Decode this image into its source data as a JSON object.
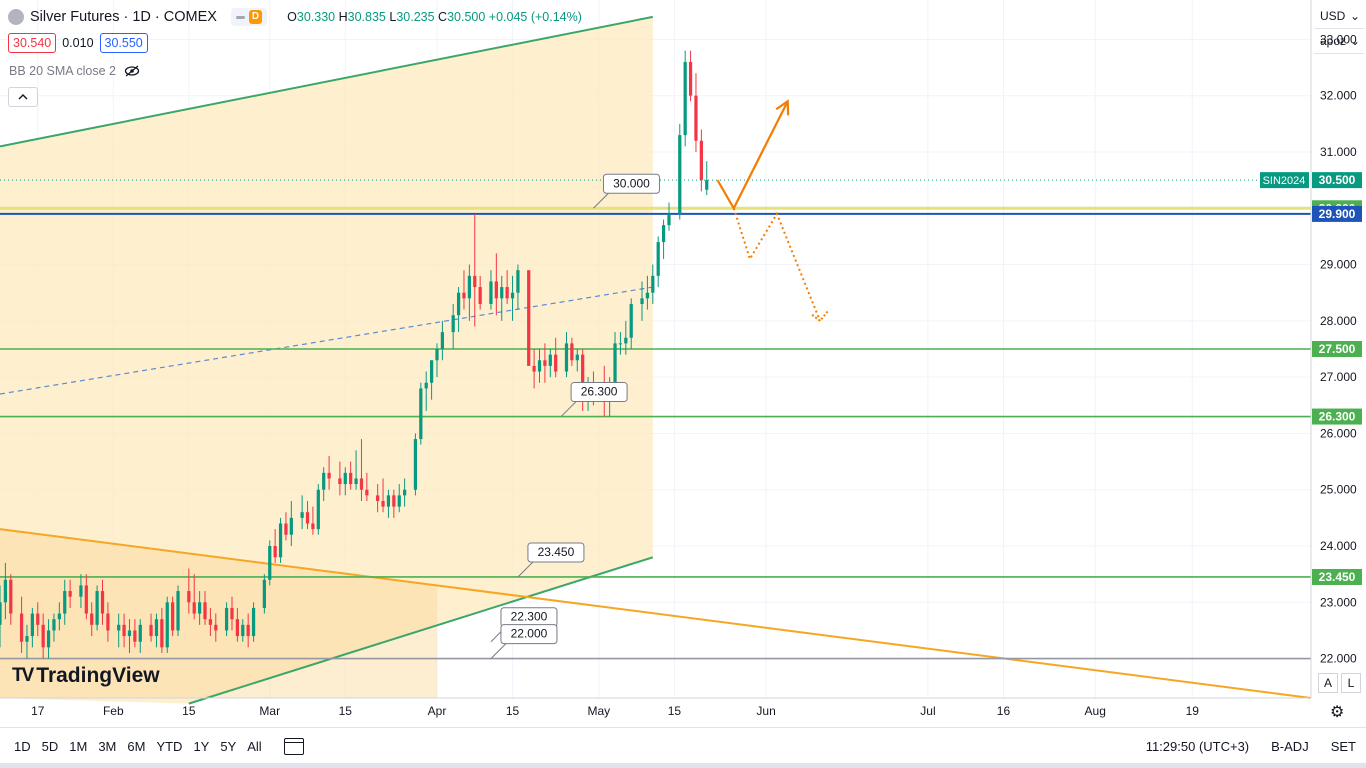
{
  "header": {
    "title": "Silver Futures · 1D · COMEX",
    "badge_letter": "D",
    "open_label": "O",
    "open_value": "30.330",
    "high_label": "H",
    "high_value": "30.835",
    "low_label": "L",
    "low_value": "30.235",
    "close_label": "C",
    "close_value": "30.500",
    "change": "+0.045 (+0.14%)"
  },
  "quote": {
    "bid": "30.540",
    "spread": "0.010",
    "ask": "30.550"
  },
  "indicator": {
    "label": "BB 20 SMA close 2"
  },
  "logo": {
    "text": "TradingView"
  },
  "right_panel": {
    "currency": "USD",
    "unit": "apoz",
    "auto_scale": "A",
    "log_scale": "L"
  },
  "bottom_bar": {
    "ranges": [
      "1D",
      "5D",
      "1M",
      "3M",
      "6M",
      "YTD",
      "1Y",
      "5Y",
      "All"
    ],
    "time": "11:29:50 (UTC+3)",
    "adjust": "B-ADJ",
    "session": "SET"
  },
  "colors": {
    "up": "#089981",
    "down": "#f23645",
    "channel_fill": "#fde9bf",
    "green_line": "#4caf50",
    "orange": "#f57c00",
    "blue_level": "#1e54b7",
    "yellow_level": "#e6e27a",
    "dashed_blue": "#5b8bd6"
  },
  "chart_data": {
    "type": "candlestick",
    "symbol": "SIN2024",
    "y_axis": {
      "ylim": [
        21.3,
        33.7
      ],
      "ticks": [
        22,
        23,
        24,
        25,
        26,
        27,
        28,
        29,
        30,
        31,
        32,
        33
      ],
      "tick_labels": [
        "22.000",
        "23.000",
        "24.000",
        "25.000",
        "26.000",
        "27.000",
        "28.000",
        "29.000",
        "30.000",
        "31.000",
        "32.000",
        "33.000"
      ]
    },
    "x_axis": {
      "ticks": [
        {
          "day": -14,
          "label": "17"
        },
        {
          "day": 0,
          "label": "Feb"
        },
        {
          "day": 14,
          "label": "15"
        },
        {
          "day": 29,
          "label": "Mar"
        },
        {
          "day": 43,
          "label": "15"
        },
        {
          "day": 60,
          "label": "Apr"
        },
        {
          "day": 74,
          "label": "15"
        },
        {
          "day": 90,
          "label": "May"
        },
        {
          "day": 104,
          "label": "15"
        },
        {
          "day": 121,
          "label": "Jun"
        },
        {
          "day": 151,
          "label": "Jul"
        },
        {
          "day": 165,
          "label": "16"
        },
        {
          "day": 182,
          "label": "Aug"
        },
        {
          "day": 200,
          "label": "19"
        }
      ]
    },
    "x_range_days": [
      -21,
      222
    ],
    "candles": [
      [
        -21,
        22.6,
        23.3,
        22.2,
        23.0
      ],
      [
        -20,
        23.0,
        23.7,
        22.7,
        23.4
      ],
      [
        -19,
        23.4,
        23.5,
        22.6,
        22.8
      ],
      [
        -17,
        22.8,
        23.1,
        22.1,
        22.3
      ],
      [
        -16,
        22.3,
        22.6,
        22.0,
        22.4
      ],
      [
        -15,
        22.4,
        22.9,
        22.2,
        22.8
      ],
      [
        -14,
        22.8,
        23.0,
        22.4,
        22.6
      ],
      [
        -13,
        22.6,
        22.8,
        22.0,
        22.2
      ],
      [
        -12,
        22.2,
        22.7,
        22.0,
        22.5
      ],
      [
        -11,
        22.5,
        22.8,
        22.3,
        22.7
      ],
      [
        -10,
        22.7,
        23.0,
        22.5,
        22.8
      ],
      [
        -9,
        22.8,
        23.4,
        22.6,
        23.2
      ],
      [
        -8,
        23.2,
        23.4,
        22.9,
        23.1
      ],
      [
        -6,
        23.1,
        23.5,
        22.9,
        23.3
      ],
      [
        -5,
        23.3,
        23.5,
        22.7,
        22.8
      ],
      [
        -4,
        22.8,
        23.0,
        22.4,
        22.6
      ],
      [
        -3,
        22.6,
        23.3,
        22.5,
        23.2
      ],
      [
        -2,
        23.2,
        23.4,
        22.6,
        22.8
      ],
      [
        -1,
        22.8,
        23.0,
        22.3,
        22.5
      ],
      [
        1,
        22.5,
        22.8,
        22.2,
        22.6
      ],
      [
        2,
        22.6,
        22.8,
        22.2,
        22.4
      ],
      [
        3,
        22.4,
        22.7,
        22.1,
        22.5
      ],
      [
        4,
        22.5,
        22.7,
        22.2,
        22.3
      ],
      [
        5,
        22.3,
        22.7,
        22.1,
        22.6
      ],
      [
        7,
        22.6,
        22.8,
        22.3,
        22.4
      ],
      [
        8,
        22.4,
        22.8,
        22.2,
        22.7
      ],
      [
        9,
        22.7,
        22.9,
        22.1,
        22.2
      ],
      [
        10,
        22.2,
        23.1,
        22.1,
        23.0
      ],
      [
        11,
        23.0,
        23.1,
        22.4,
        22.5
      ],
      [
        12,
        22.5,
        23.3,
        22.4,
        23.2
      ],
      [
        14,
        23.2,
        23.6,
        22.8,
        23.0
      ],
      [
        15,
        23.0,
        23.5,
        22.7,
        22.8
      ],
      [
        16,
        22.8,
        23.2,
        22.6,
        23.0
      ],
      [
        17,
        23.0,
        23.2,
        22.6,
        22.7
      ],
      [
        18,
        22.7,
        22.9,
        22.4,
        22.6
      ],
      [
        19,
        22.6,
        22.8,
        22.3,
        22.5
      ],
      [
        21,
        22.5,
        23.0,
        22.4,
        22.9
      ],
      [
        22,
        22.9,
        23.1,
        22.5,
        22.7
      ],
      [
        23,
        22.7,
        22.9,
        22.3,
        22.4
      ],
      [
        24,
        22.4,
        22.7,
        22.3,
        22.6
      ],
      [
        25,
        22.6,
        22.8,
        22.2,
        22.4
      ],
      [
        26,
        22.4,
        23.0,
        22.3,
        22.9
      ],
      [
        28,
        22.9,
        23.5,
        22.8,
        23.4
      ],
      [
        29,
        23.4,
        24.1,
        23.3,
        24.0
      ],
      [
        30,
        24.0,
        24.3,
        23.7,
        23.8
      ],
      [
        31,
        23.8,
        24.5,
        23.7,
        24.4
      ],
      [
        32,
        24.4,
        24.6,
        24.1,
        24.2
      ],
      [
        33,
        24.2,
        24.8,
        24.0,
        24.5
      ],
      [
        35,
        24.5,
        24.9,
        24.3,
        24.6
      ],
      [
        36,
        24.6,
        24.8,
        24.3,
        24.4
      ],
      [
        37,
        24.4,
        24.7,
        24.2,
        24.3
      ],
      [
        38,
        24.3,
        25.1,
        24.2,
        25.0
      ],
      [
        39,
        25.0,
        25.4,
        24.8,
        25.3
      ],
      [
        40,
        25.3,
        25.6,
        25.0,
        25.2
      ],
      [
        42,
        25.2,
        25.5,
        24.9,
        25.1
      ],
      [
        43,
        25.1,
        25.4,
        24.9,
        25.3
      ],
      [
        44,
        25.3,
        25.5,
        25.0,
        25.1
      ],
      [
        45,
        25.1,
        25.7,
        25.0,
        25.2
      ],
      [
        46,
        25.2,
        25.9,
        24.8,
        25.0
      ],
      [
        47,
        25.0,
        25.3,
        24.8,
        24.9
      ],
      [
        49,
        24.9,
        25.1,
        24.6,
        24.8
      ],
      [
        50,
        24.8,
        25.2,
        24.6,
        24.7
      ],
      [
        51,
        24.7,
        25.0,
        24.5,
        24.9
      ],
      [
        52,
        24.9,
        25.0,
        24.5,
        24.7
      ],
      [
        53,
        24.7,
        25.1,
        24.6,
        24.9
      ],
      [
        54,
        24.9,
        25.2,
        24.7,
        25.0
      ],
      [
        56,
        25.0,
        26.0,
        24.9,
        25.9
      ],
      [
        57,
        25.9,
        26.9,
        25.8,
        26.8
      ],
      [
        58,
        26.8,
        27.1,
        26.4,
        26.9
      ],
      [
        59,
        26.9,
        27.3,
        26.6,
        27.3
      ],
      [
        60,
        27.3,
        27.6,
        27.0,
        27.5
      ],
      [
        61,
        27.5,
        28.0,
        27.3,
        27.8
      ],
      [
        63,
        27.8,
        28.3,
        27.5,
        28.1
      ],
      [
        64,
        28.1,
        28.6,
        27.8,
        28.5
      ],
      [
        65,
        28.5,
        28.9,
        28.2,
        28.4
      ],
      [
        66,
        28.4,
        29.0,
        28.0,
        28.8
      ],
      [
        67,
        28.8,
        29.9,
        27.9,
        28.6
      ],
      [
        68,
        28.6,
        28.8,
        28.2,
        28.3
      ],
      [
        70,
        28.3,
        28.9,
        28.2,
        28.7
      ],
      [
        71,
        28.7,
        29.2,
        28.1,
        28.4
      ],
      [
        72,
        28.4,
        28.8,
        28.0,
        28.6
      ],
      [
        73,
        28.6,
        28.9,
        28.3,
        28.4
      ],
      [
        74,
        28.4,
        28.8,
        28.0,
        28.5
      ],
      [
        75,
        28.5,
        29.0,
        28.2,
        28.9
      ],
      [
        77,
        28.9,
        28.9,
        27.2,
        27.2
      ],
      [
        78,
        27.2,
        27.5,
        26.8,
        27.1
      ],
      [
        79,
        27.1,
        27.5,
        26.9,
        27.3
      ],
      [
        80,
        27.3,
        27.6,
        26.9,
        27.2
      ],
      [
        81,
        27.2,
        27.5,
        27.0,
        27.4
      ],
      [
        82,
        27.4,
        27.7,
        27.0,
        27.1
      ],
      [
        84,
        27.1,
        27.8,
        27.0,
        27.6
      ],
      [
        85,
        27.6,
        27.7,
        27.2,
        27.3
      ],
      [
        86,
        27.3,
        27.5,
        27.1,
        27.4
      ],
      [
        87,
        27.4,
        27.5,
        26.4,
        26.6
      ],
      [
        88,
        26.6,
        27.0,
        26.4,
        26.9
      ],
      [
        89,
        26.9,
        27.1,
        26.5,
        26.7
      ],
      [
        91,
        26.7,
        27.2,
        26.3,
        26.6
      ],
      [
        92,
        26.6,
        27.0,
        26.3,
        26.9
      ],
      [
        93,
        26.9,
        27.8,
        26.8,
        27.6
      ],
      [
        94,
        27.6,
        27.8,
        27.4,
        27.6
      ],
      [
        95,
        27.6,
        28.0,
        27.4,
        27.7
      ],
      [
        96,
        27.7,
        28.4,
        27.5,
        28.3
      ],
      [
        98,
        28.3,
        28.7,
        28.0,
        28.4
      ],
      [
        99,
        28.4,
        28.8,
        28.2,
        28.5
      ],
      [
        100,
        28.5,
        29.0,
        28.3,
        28.8
      ],
      [
        101,
        28.8,
        29.5,
        28.6,
        29.4
      ],
      [
        102,
        29.4,
        29.8,
        29.1,
        29.7
      ],
      [
        103,
        29.7,
        30.1,
        29.6,
        29.9
      ],
      [
        105,
        29.9,
        31.5,
        29.8,
        31.3
      ],
      [
        106,
        31.3,
        32.8,
        31.1,
        32.6
      ],
      [
        107,
        32.6,
        32.8,
        31.9,
        32.0
      ],
      [
        108,
        32.0,
        32.4,
        31.0,
        31.2
      ],
      [
        109,
        31.2,
        31.4,
        30.3,
        30.5
      ],
      [
        110,
        30.33,
        30.835,
        30.235,
        30.5
      ]
    ],
    "annotations": {
      "channel_upper": {
        "start": [
          -21,
          31.1
        ],
        "end": [
          100,
          33.4
        ]
      },
      "channel_lower": {
        "start": [
          14,
          21.2
        ],
        "end": [
          100,
          23.8
        ]
      },
      "triangle_orange": {
        "start": [
          -21,
          24.3
        ],
        "end": [
          222,
          21.3
        ]
      },
      "dashed_mid": {
        "start": [
          -21,
          26.7
        ],
        "end": [
          100,
          28.6
        ]
      },
      "levels": [
        {
          "price": 30.0,
          "label": "30.000",
          "color": "yellow"
        },
        {
          "price": 29.9,
          "label": "29.900",
          "color": "blue"
        },
        {
          "price": 27.5,
          "label": "27.500",
          "color": "green"
        },
        {
          "price": 26.3,
          "label": "26.300",
          "color": "green"
        },
        {
          "price": 23.45,
          "label": "23.450",
          "color": "green"
        },
        {
          "price": 22.0,
          "label": "22.000",
          "color": "gray"
        }
      ],
      "callouts": [
        {
          "anchor": [
            89,
            30.0
          ],
          "text": "30.000"
        },
        {
          "anchor": [
            83,
            26.3
          ],
          "text": "26.300"
        },
        {
          "anchor": [
            75,
            23.45
          ],
          "text": "23.450"
        },
        {
          "anchor": [
            70,
            22.3
          ],
          "text": "22.300"
        },
        {
          "anchor": [
            70,
            22.0
          ],
          "text": "22.000"
        }
      ],
      "last_price": {
        "value": 30.5,
        "label": "30.500",
        "symbol_label": "SIN2024"
      },
      "scenario_up": [
        [
          112,
          30.5
        ],
        [
          115,
          30.0
        ],
        [
          125,
          31.9
        ]
      ],
      "scenario_down": [
        [
          115,
          30.0
        ],
        [
          118,
          29.1
        ],
        [
          123,
          29.9
        ],
        [
          131,
          28.0
        ]
      ]
    }
  }
}
